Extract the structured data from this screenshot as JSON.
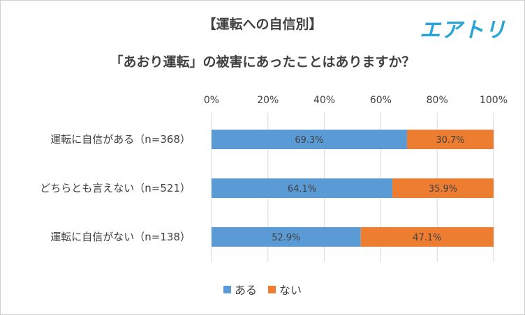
{
  "header": {
    "title_line1": "【運転への自信別】",
    "title_line2": "「あおり運転」の被害にあったことはありますか？",
    "logo_text": "エアトリ"
  },
  "colors": {
    "aru": "#5b9bd5",
    "nai": "#ed7d31",
    "grid": "#d9d9d9",
    "text": "#404040"
  },
  "chart_data": {
    "type": "bar",
    "orientation": "horizontal",
    "stacked": true,
    "percent": true,
    "categories": [
      "運転に自信がある（n=368）",
      "どちらとも言えない（n=521）",
      "運転に自信がない（n=138）"
    ],
    "series": [
      {
        "name": "ある",
        "values": [
          69.3,
          64.1,
          52.9
        ],
        "labels": [
          "69.3%",
          "64.1%",
          "52.9%"
        ]
      },
      {
        "name": "ない",
        "values": [
          30.7,
          35.9,
          47.1
        ],
        "labels": [
          "30.7%",
          "35.9%",
          "47.1%"
        ]
      }
    ],
    "xlim": [
      0,
      100
    ],
    "xticks": [
      "0%",
      "20%",
      "40%",
      "60%",
      "80%",
      "100%"
    ],
    "grid": true,
    "legend": "bottom"
  }
}
